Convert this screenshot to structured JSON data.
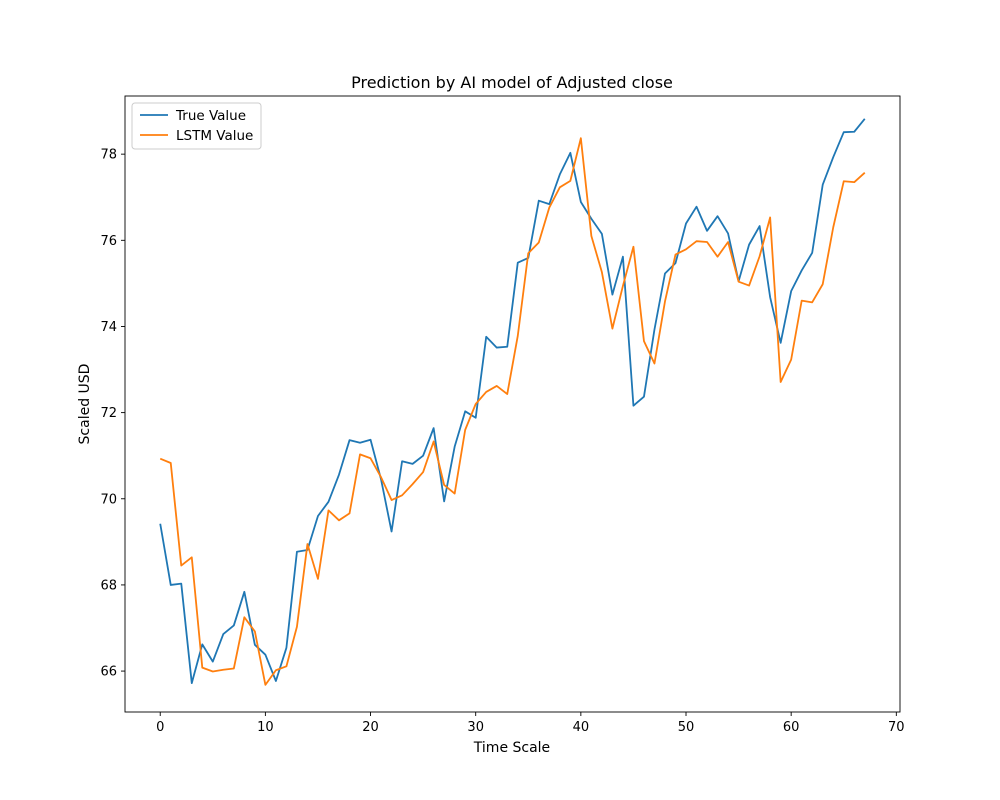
{
  "chart_data": {
    "type": "line",
    "title": "Prediction by AI model of Adjusted close",
    "xlabel": "Time Scale",
    "ylabel": "Scaled USD",
    "xlim": [
      -3.35,
      70.35
    ],
    "ylim": [
      65.05,
      79.35
    ],
    "xticks": [
      0,
      10,
      20,
      30,
      40,
      50,
      60,
      70
    ],
    "yticks": [
      66,
      68,
      70,
      72,
      74,
      76,
      78
    ],
    "grid": false,
    "legend_position": "top-left",
    "x": [
      0,
      1,
      2,
      3,
      4,
      5,
      6,
      7,
      8,
      9,
      10,
      11,
      12,
      13,
      14,
      15,
      16,
      17,
      18,
      19,
      20,
      21,
      22,
      23,
      24,
      25,
      26,
      27,
      28,
      29,
      30,
      31,
      32,
      33,
      34,
      35,
      36,
      37,
      38,
      39,
      40,
      41,
      42,
      43,
      44,
      45,
      46,
      47,
      48,
      49,
      50,
      51,
      52,
      53,
      54,
      55,
      56,
      57,
      58,
      59,
      60,
      61,
      62,
      63,
      64,
      65,
      66,
      67
    ],
    "series": [
      {
        "name": "True Value",
        "color": "#1f77b4",
        "values": [
          69.42,
          68.0,
          68.03,
          65.72,
          66.62,
          66.22,
          66.86,
          67.06,
          67.84,
          66.61,
          66.38,
          65.77,
          66.54,
          68.77,
          68.81,
          69.6,
          69.93,
          70.56,
          71.36,
          71.3,
          71.37,
          70.45,
          69.24,
          70.87,
          70.81,
          71.0,
          71.64,
          69.94,
          71.21,
          72.03,
          71.88,
          73.76,
          73.51,
          73.53,
          75.48,
          75.59,
          76.92,
          76.84,
          77.53,
          78.03,
          76.89,
          76.5,
          76.15,
          74.74,
          75.62,
          72.16,
          72.37,
          73.93,
          75.23,
          75.47,
          76.39,
          76.78,
          76.22,
          76.56,
          76.16,
          75.05,
          75.9,
          76.33,
          74.68,
          73.62,
          74.82,
          75.3,
          75.71,
          77.29,
          77.93,
          78.51,
          78.52,
          78.82
        ]
      },
      {
        "name": "LSTM Value",
        "color": "#ff7f0e",
        "values": [
          70.93,
          70.83,
          68.45,
          68.64,
          66.08,
          65.99,
          66.03,
          66.06,
          67.25,
          66.92,
          65.68,
          66.02,
          66.11,
          67.03,
          68.95,
          68.14,
          69.73,
          69.5,
          69.66,
          71.03,
          70.94,
          70.5,
          69.97,
          70.08,
          70.34,
          70.62,
          71.33,
          70.32,
          70.12,
          71.6,
          72.2,
          72.48,
          72.62,
          72.43,
          73.78,
          75.7,
          75.95,
          76.76,
          77.23,
          77.38,
          78.37,
          76.1,
          75.26,
          73.95,
          74.94,
          75.85,
          73.66,
          73.14,
          74.58,
          75.67,
          75.79,
          75.98,
          75.96,
          75.62,
          75.96,
          75.04,
          74.95,
          75.63,
          76.53,
          72.71,
          73.23,
          74.6,
          74.56,
          74.98,
          76.3,
          77.37,
          77.35,
          77.57
        ]
      }
    ]
  }
}
